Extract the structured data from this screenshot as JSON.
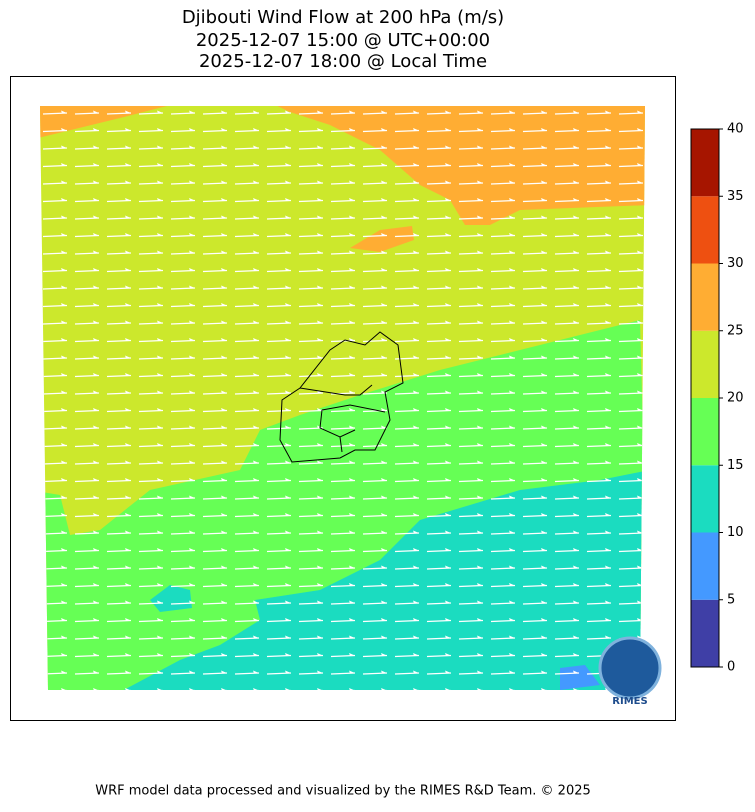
{
  "title": [
    "Djibouti Wind Flow at 200 hPa (m/s)",
    "2025-12-07 15:00 @ UTC+00:00",
    "2025-12-07 18:00 @ Local Time"
  ],
  "colorbar": {
    "range": [
      0,
      40
    ],
    "ticks": [
      0,
      5,
      10,
      15,
      20,
      25,
      30,
      35,
      40
    ],
    "colors": [
      "#3f3fa6",
      "#4499ff",
      "#1bdcc0",
      "#66ff55",
      "#cce82c",
      "#ffad33",
      "#ee5011",
      "#a61500"
    ]
  },
  "logo": "RIMES",
  "footer": "WRF model data processed and visualized by the RIMES R&D Team. © 2025"
}
